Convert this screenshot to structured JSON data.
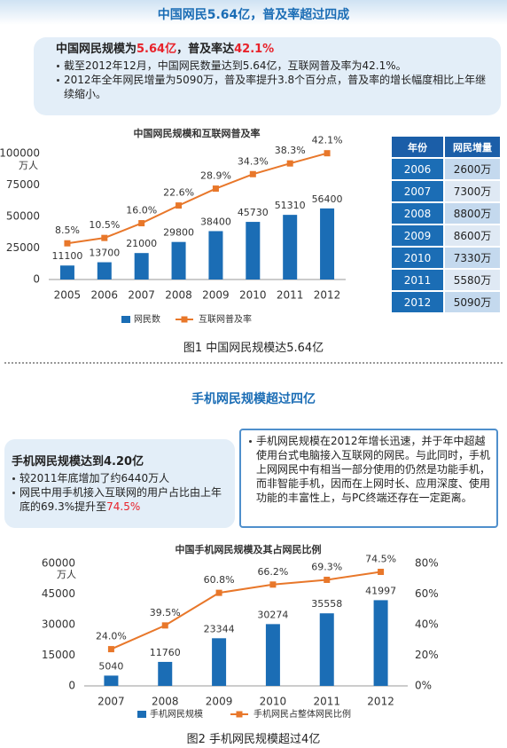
{
  "header1": "中国网民5.64亿，普及率超过四成",
  "box1": {
    "title": [
      "中国网民规模为",
      "5.64亿",
      "，普及率达",
      "42.1%"
    ],
    "bullets": [
      "截至2012年12月，中国网民数量达到5.64亿，互联网普及率为42.1%。",
      "2012年全年网民增量为5090万，普及率提升3.8个百分点，普及率的增长幅度相比上年继续缩小。"
    ]
  },
  "table": {
    "header": [
      "年份",
      "网民增量"
    ],
    "rows": [
      [
        "2006",
        "2600万"
      ],
      [
        "2007",
        "7300万"
      ],
      [
        "2008",
        "8800万"
      ],
      [
        "2009",
        "8600万"
      ],
      [
        "2010",
        "7330万"
      ],
      [
        "2011",
        "5580万"
      ],
      [
        "2012",
        "5090万"
      ]
    ]
  },
  "caption1": "图1 中国网民规模达5.64亿",
  "header2": "手机网民规模超过四亿",
  "box2": {
    "title": "手机网民规模达到4.20亿",
    "bullets": [
      [
        "较2011年底增加了约6440万人"
      ],
      [
        "网民中用手机接入互联网的用户占比由上年底的69.3%提升至",
        "74.5%"
      ]
    ]
  },
  "box3": "手机网民规模在2012年增长迅速，并于年中超越使用台式电脑接入互联网的网民。与此同时，手机上网网民中有相当一部分使用的仍然是功能手机，而非智能手机，因而在上网时长、应用深度、使用功能的丰富性上，与PC终端还存在一定距离。",
  "caption2": "图2 手机网民规模超过4亿",
  "chart_data": [
    {
      "type": "combo",
      "title": "中国网民规模和互联网普及率",
      "y_label": "万人",
      "categories": [
        "2005",
        "2006",
        "2007",
        "2008",
        "2009",
        "2010",
        "2011",
        "2012"
      ],
      "series": [
        {
          "name": "网民数",
          "type": "bar",
          "color": "#1b6db5",
          "values": [
            11100,
            13700,
            21000,
            29800,
            38400,
            45730,
            51310,
            56400
          ]
        },
        {
          "name": "互联网普及率",
          "type": "line",
          "axis": "y2",
          "color": "#e8772a",
          "values": [
            8.5,
            10.5,
            16.0,
            22.6,
            28.9,
            34.3,
            38.3,
            42.1
          ],
          "value_labels": [
            "8.5%",
            "10.5%",
            "16.0%",
            "22.6%",
            "28.9%",
            "34.3%",
            "38.3%",
            "42.1%"
          ]
        }
      ],
      "ylim": [
        0,
        100000
      ],
      "yticks": [
        0,
        25000,
        50000,
        75000,
        100000
      ],
      "y2lim": [
        -5,
        42
      ],
      "grid": false
    },
    {
      "type": "combo",
      "title": "中国手机网民规模及其占网民比例",
      "y_label": "万人",
      "categories": [
        "2007",
        "2008",
        "2009",
        "2010",
        "2011",
        "2012"
      ],
      "series": [
        {
          "name": "手机网民规模",
          "type": "bar",
          "color": "#1b6db5",
          "values": [
            5040,
            11760,
            23344,
            30274,
            35558,
            41997
          ]
        },
        {
          "name": "手机网民占整体网民比例",
          "type": "line",
          "axis": "y2",
          "color": "#e8772a",
          "values": [
            24.0,
            39.5,
            60.8,
            66.2,
            69.3,
            74.5
          ],
          "value_labels": [
            "24.0%",
            "39.5%",
            "60.8%",
            "66.2%",
            "69.3%",
            "74.5%"
          ]
        }
      ],
      "ylim": [
        0,
        60000
      ],
      "yticks": [
        0,
        15000,
        30000,
        45000,
        60000
      ],
      "y2lim": [
        0,
        80
      ],
      "y2ticks": [
        {
          "value": 0,
          "label": "0%"
        },
        {
          "value": 20,
          "label": "20%"
        },
        {
          "value": 40,
          "label": "40%"
        },
        {
          "value": 60,
          "label": "60%"
        },
        {
          "value": 80,
          "label": "80%"
        }
      ],
      "grid": false
    }
  ]
}
